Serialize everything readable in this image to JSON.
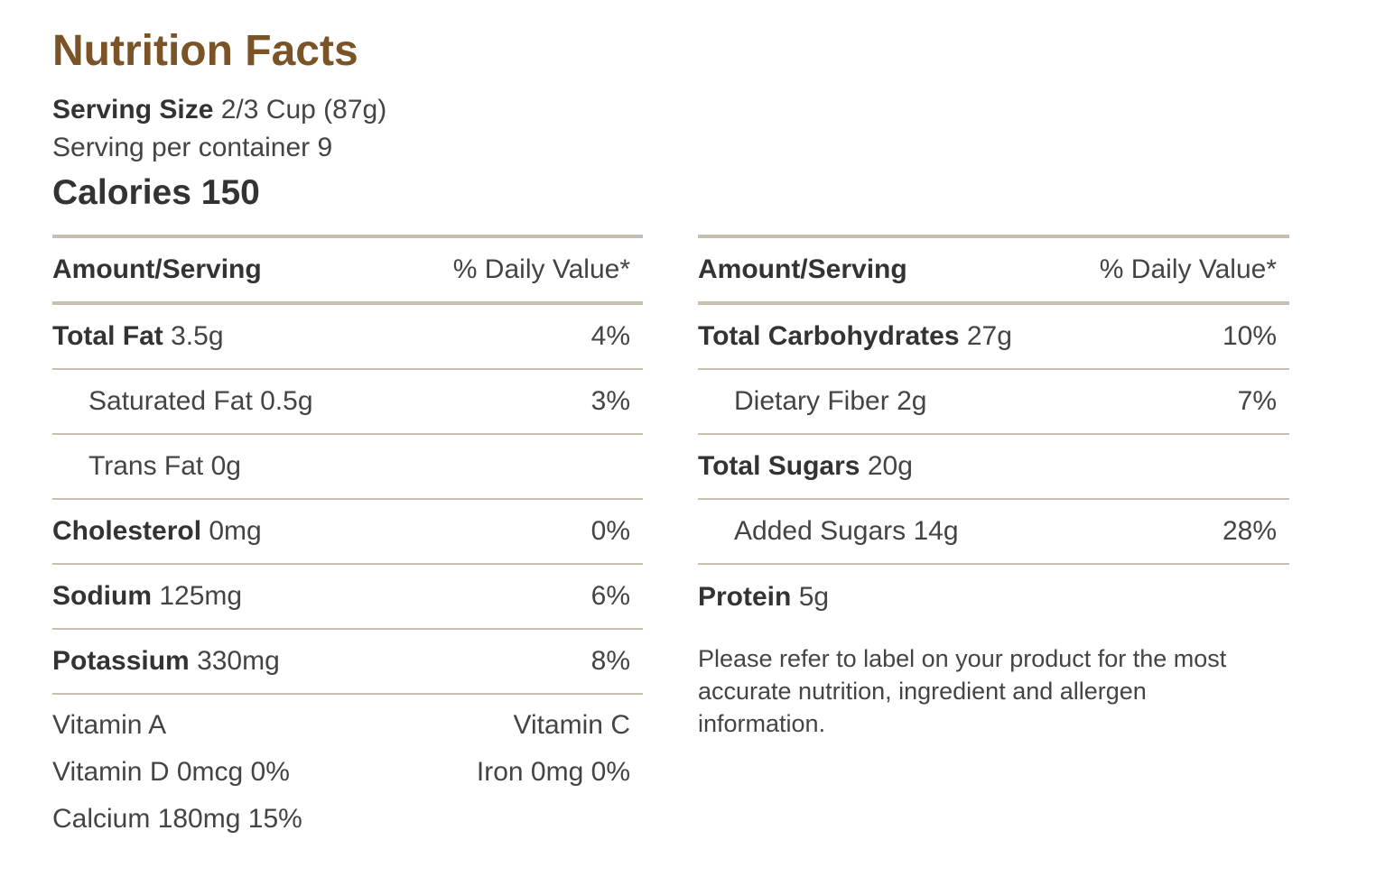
{
  "title": "Nutrition Facts",
  "serving": {
    "size_label": "Serving Size",
    "size_value": "2/3 Cup (87g)",
    "per_container": "Serving per container 9"
  },
  "calories": {
    "label": "Calories",
    "value": "150"
  },
  "table_header": {
    "amount": "Amount/Serving",
    "daily_value": "% Daily Value*"
  },
  "left_rows": [
    {
      "name": "Total Fat",
      "amount": "3.5g",
      "dv": "4%",
      "bold": true
    },
    {
      "name": "Saturated Fat",
      "amount": "0.5g",
      "dv": "3%",
      "bold": false
    },
    {
      "name": "Trans Fat",
      "amount": "0g",
      "dv": "",
      "bold": false
    },
    {
      "name": "Cholesterol",
      "amount": "0mg",
      "dv": "0%",
      "bold": true
    },
    {
      "name": "Sodium",
      "amount": "125mg",
      "dv": "6%",
      "bold": true
    },
    {
      "name": "Potassium",
      "amount": "330mg",
      "dv": "8%",
      "bold": true
    }
  ],
  "vitamins": [
    {
      "left": "Vitamin A",
      "right": "Vitamin C"
    },
    {
      "left": "Vitamin D 0mcg 0%",
      "right": "Iron 0mg 0%"
    },
    {
      "left": "Calcium 180mg 15%",
      "right": ""
    }
  ],
  "right_rows": [
    {
      "name": "Total Carbohydrates",
      "amount": "27g",
      "dv": "10%",
      "bold": true
    },
    {
      "name": "Dietary Fiber",
      "amount": "2g",
      "dv": "7%",
      "bold": false
    },
    {
      "name": "Total Sugars",
      "amount": "20g",
      "dv": "",
      "bold": true
    },
    {
      "name": "Added Sugars",
      "amount": "14g",
      "dv": "28%",
      "bold": false
    },
    {
      "name": "Protein",
      "amount": "5g",
      "dv": "",
      "bold": true
    }
  ],
  "disclaimer": "Please refer to label on your product for the most accurate nutrition, ingredient and allergen information."
}
